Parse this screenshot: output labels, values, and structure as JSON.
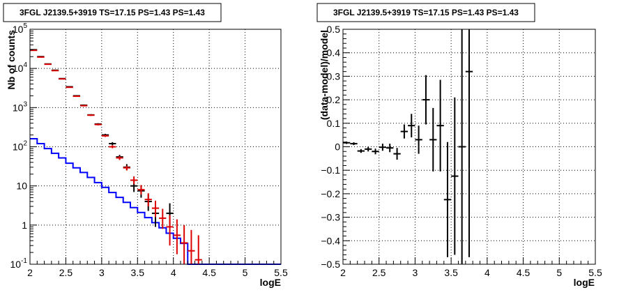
{
  "chart_data": [
    {
      "type": "line",
      "title": "3FGL J2139.5+3919 TS=17.15 PS=1.43 PS=1.43",
      "xlabel": "logE",
      "ylabel": "Nb of counts",
      "xlim": [
        2,
        5.5
      ],
      "ylim": [
        0.1,
        100000
      ],
      "yscale": "log",
      "grid": true,
      "x_ticks": [
        "2",
        "2.5",
        "3",
        "3.5",
        "4",
        "4.5",
        "5",
        "5.5"
      ],
      "y_ticks": [
        {
          "value": 0.1,
          "label": "10",
          "exp": "-1"
        },
        {
          "value": 1,
          "label": "1",
          "exp": ""
        },
        {
          "value": 10,
          "label": "10",
          "exp": ""
        },
        {
          "value": 100,
          "label": "10",
          "exp": "2"
        },
        {
          "value": 1000,
          "label": "10",
          "exp": "3"
        },
        {
          "value": 10000,
          "label": "10",
          "exp": "4"
        },
        {
          "value": 100000,
          "label": "10",
          "exp": "5"
        }
      ],
      "series": [
        {
          "kind": "step",
          "color": "#0000ff",
          "bin_edges": [
            2,
            2.1,
            2.2,
            2.3,
            2.4,
            2.5,
            2.6,
            2.7,
            2.8,
            2.9,
            3.0,
            3.1,
            3.2,
            3.3,
            3.4,
            3.5,
            3.6,
            3.7,
            3.8,
            3.9,
            4.0,
            4.1,
            4.2,
            5.5
          ],
          "values": [
            160,
            120,
            90,
            68,
            52,
            38,
            29,
            22,
            16.5,
            12.2,
            9.2,
            6.8,
            5.1,
            3.8,
            2.8,
            2.1,
            1.55,
            1.15,
            0.85,
            0.62,
            0.46,
            0.34,
            0.1
          ]
        },
        {
          "kind": "errorbar",
          "color": "#000000",
          "points": [
            {
              "x": 2.05,
              "y": 30000,
              "ylo": 29500,
              "yhi": 30500
            },
            {
              "x": 2.15,
              "y": 20000,
              "ylo": 19600,
              "yhi": 20400
            },
            {
              "x": 2.25,
              "y": 13000,
              "ylo": 12700,
              "yhi": 13300
            },
            {
              "x": 2.35,
              "y": 9000,
              "ylo": 8800,
              "yhi": 9200
            },
            {
              "x": 2.45,
              "y": 5500,
              "ylo": 5350,
              "yhi": 5650
            },
            {
              "x": 2.55,
              "y": 3400,
              "ylo": 3300,
              "yhi": 3500
            },
            {
              "x": 2.65,
              "y": 2000,
              "ylo": 1930,
              "yhi": 2070
            },
            {
              "x": 2.75,
              "y": 1150,
              "ylo": 1100,
              "yhi": 1200
            },
            {
              "x": 2.85,
              "y": 650,
              "ylo": 620,
              "yhi": 680
            },
            {
              "x": 2.95,
              "y": 380,
              "ylo": 360,
              "yhi": 400
            },
            {
              "x": 3.05,
              "y": 200,
              "ylo": 186,
              "yhi": 214
            },
            {
              "x": 3.15,
              "y": 120,
              "ylo": 110,
              "yhi": 131
            },
            {
              "x": 3.25,
              "y": 55,
              "ylo": 48,
              "yhi": 62
            },
            {
              "x": 3.35,
              "y": 30,
              "ylo": 25,
              "yhi": 36
            },
            {
              "x": 3.45,
              "y": 10,
              "ylo": 7,
              "yhi": 13.5
            },
            {
              "x": 3.55,
              "y": 7.5,
              "ylo": 5,
              "yhi": 10.5
            },
            {
              "x": 3.65,
              "y": 4,
              "ylo": 2.3,
              "yhi": 6.2
            },
            {
              "x": 3.75,
              "y": 2,
              "ylo": 0.9,
              "yhi": 3.6
            },
            {
              "x": 3.95,
              "y": 2,
              "ylo": 0.9,
              "yhi": 3.6
            }
          ]
        },
        {
          "kind": "errorbar",
          "color": "#dd0000",
          "points": [
            {
              "x": 2.05,
              "y": 29000,
              "ylo": 28500,
              "yhi": 29500
            },
            {
              "x": 2.15,
              "y": 19500,
              "ylo": 19100,
              "yhi": 19900
            },
            {
              "x": 2.25,
              "y": 12800,
              "ylo": 12500,
              "yhi": 13100
            },
            {
              "x": 2.35,
              "y": 8800,
              "ylo": 8600,
              "yhi": 9000
            },
            {
              "x": 2.45,
              "y": 5400,
              "ylo": 5250,
              "yhi": 5550
            },
            {
              "x": 2.55,
              "y": 3300,
              "ylo": 3200,
              "yhi": 3400
            },
            {
              "x": 2.65,
              "y": 1950,
              "ylo": 1880,
              "yhi": 2020
            },
            {
              "x": 2.75,
              "y": 1120,
              "ylo": 1070,
              "yhi": 1170
            },
            {
              "x": 2.85,
              "y": 640,
              "ylo": 610,
              "yhi": 670
            },
            {
              "x": 2.95,
              "y": 370,
              "ylo": 350,
              "yhi": 390
            },
            {
              "x": 3.05,
              "y": 190,
              "ylo": 178,
              "yhi": 202
            },
            {
              "x": 3.15,
              "y": 100,
              "ylo": 92,
              "yhi": 109
            },
            {
              "x": 3.25,
              "y": 52,
              "ylo": 46,
              "yhi": 58
            },
            {
              "x": 3.35,
              "y": 29,
              "ylo": 25,
              "yhi": 33
            },
            {
              "x": 3.45,
              "y": 14,
              "ylo": 11,
              "yhi": 17.5
            },
            {
              "x": 3.55,
              "y": 8,
              "ylo": 6,
              "yhi": 10.5
            },
            {
              "x": 3.65,
              "y": 4.5,
              "ylo": 3,
              "yhi": 6.5
            },
            {
              "x": 3.75,
              "y": 2.7,
              "ylo": 1.6,
              "yhi": 4.2
            },
            {
              "x": 3.85,
              "y": 1.5,
              "ylo": 0.8,
              "yhi": 2.6
            },
            {
              "x": 3.95,
              "y": 0.9,
              "ylo": 0.3,
              "yhi": 1.8
            },
            {
              "x": 4.05,
              "y": 0.55,
              "ylo": 0.18,
              "yhi": 1.4
            },
            {
              "x": 4.15,
              "y": 0.35,
              "ylo": 0.1,
              "yhi": 1.0
            },
            {
              "x": 4.25,
              "y": 0.22,
              "ylo": 0.1,
              "yhi": 0.75
            },
            {
              "x": 4.35,
              "y": 0.13,
              "ylo": 0.1,
              "yhi": 0.55
            }
          ]
        }
      ]
    },
    {
      "type": "scatter",
      "title": "3FGL J2139.5+3919 TS=17.15 PS=1.43 PS=1.43",
      "xlabel": "logE",
      "ylabel": "(data-model)/model",
      "xlim": [
        2,
        5.5
      ],
      "ylim": [
        -0.5,
        0.5
      ],
      "grid": true,
      "x_ticks": [
        "2",
        "2.5",
        "3",
        "3.5",
        "4",
        "4.5",
        "5",
        "5.5"
      ],
      "y_ticks": [
        "0.5",
        "0.4",
        "0.3",
        "0.2",
        "0.1",
        "0",
        "−0.1",
        "−0.2",
        "−0.3",
        "−0.4",
        "−0.5"
      ],
      "series": [
        {
          "kind": "errorbar",
          "color": "#000000",
          "points": [
            {
              "x": 2.05,
              "y": 0.017,
              "err": 0.005
            },
            {
              "x": 2.15,
              "y": 0.013,
              "err": 0.006
            },
            {
              "x": 2.25,
              "y": -0.018,
              "err": 0.008
            },
            {
              "x": 2.35,
              "y": -0.01,
              "err": 0.01
            },
            {
              "x": 2.45,
              "y": -0.02,
              "err": 0.012
            },
            {
              "x": 2.55,
              "y": -0.002,
              "err": 0.015
            },
            {
              "x": 2.65,
              "y": -0.005,
              "err": 0.018
            },
            {
              "x": 2.75,
              "y": -0.03,
              "err": 0.025
            },
            {
              "x": 2.85,
              "y": 0.065,
              "err": 0.03
            },
            {
              "x": 2.95,
              "y": 0.09,
              "err": 0.05
            },
            {
              "x": 3.05,
              "y": 0.03,
              "err": 0.06
            },
            {
              "x": 3.15,
              "y": 0.2,
              "err": 0.105
            },
            {
              "x": 3.25,
              "y": 0.03,
              "err": 0.135
            },
            {
              "x": 3.35,
              "y": 0.09,
              "err": 0.195
            },
            {
              "x": 3.45,
              "y": -0.225,
              "err": 0.245
            },
            {
              "x": 3.55,
              "y": -0.125,
              "err": 0.335
            },
            {
              "x": 3.65,
              "y": 0.0,
              "err": 0.5
            },
            {
              "x": 3.75,
              "y": 0.32,
              "err": 0.79
            }
          ]
        }
      ]
    }
  ]
}
